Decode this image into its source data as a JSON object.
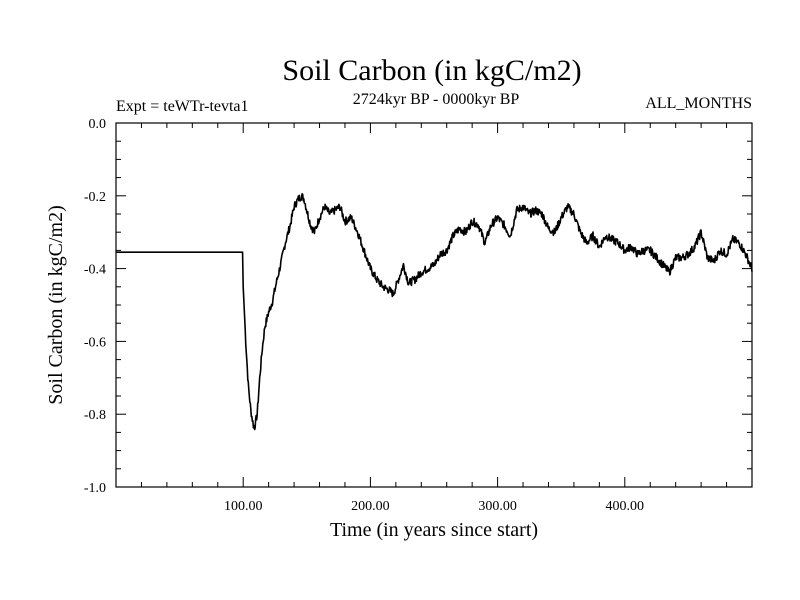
{
  "chart_data": {
    "type": "line",
    "title": "Soil Carbon (in kgC/m2)",
    "left_label": "Expt = teWTr-tevta1",
    "center_label": "2724kyr BP - 0000kyr BP",
    "right_label": "ALL_MONTHS",
    "xlabel": "Time (in years since start)",
    "ylabel": "Soil Carbon (in kgC/m2)",
    "xlim": [
      0,
      500
    ],
    "ylim": [
      -1.0,
      0.0
    ],
    "x_ticks": [
      100,
      200,
      300,
      400
    ],
    "x_tick_labels": [
      "100.00",
      "200.00",
      "300.00",
      "400.00"
    ],
    "y_ticks": [
      0.0,
      -0.2,
      -0.4,
      -0.6,
      -0.8,
      -1.0
    ],
    "y_tick_labels": [
      "0.0",
      "-0.2",
      "-0.4",
      "-0.6",
      "-0.8",
      "-1.0"
    ],
    "line_color": "#000000",
    "series": [
      {
        "name": "Soil Carbon",
        "x": [
          0,
          99.5,
          100,
          102,
          104,
          106,
          108,
          109,
          111,
          113,
          115,
          117,
          120,
          123,
          126,
          130,
          133,
          137,
          140,
          143,
          146,
          148,
          150,
          153,
          156,
          160,
          164,
          168,
          172,
          176,
          180,
          185,
          190,
          195,
          200,
          205,
          210,
          215,
          218,
          222,
          226,
          230,
          235,
          240,
          245,
          250,
          255,
          260,
          265,
          270,
          275,
          280,
          285,
          290,
          295,
          300,
          305,
          310,
          315,
          320,
          325,
          330,
          335,
          340,
          345,
          350,
          355,
          360,
          365,
          370,
          375,
          380,
          385,
          390,
          395,
          400,
          405,
          410,
          415,
          420,
          425,
          430,
          435,
          440,
          445,
          450,
          455,
          460,
          465,
          470,
          475,
          480,
          485,
          490,
          495,
          500
        ],
        "y": [
          -0.355,
          -0.355,
          -0.45,
          -0.6,
          -0.72,
          -0.79,
          -0.83,
          -0.835,
          -0.8,
          -0.7,
          -0.62,
          -0.56,
          -0.52,
          -0.49,
          -0.44,
          -0.38,
          -0.33,
          -0.28,
          -0.23,
          -0.21,
          -0.2,
          -0.21,
          -0.24,
          -0.28,
          -0.3,
          -0.26,
          -0.23,
          -0.25,
          -0.24,
          -0.23,
          -0.27,
          -0.26,
          -0.3,
          -0.35,
          -0.4,
          -0.43,
          -0.45,
          -0.46,
          -0.47,
          -0.43,
          -0.39,
          -0.44,
          -0.43,
          -0.41,
          -0.4,
          -0.39,
          -0.36,
          -0.35,
          -0.31,
          -0.29,
          -0.3,
          -0.27,
          -0.28,
          -0.33,
          -0.28,
          -0.26,
          -0.28,
          -0.31,
          -0.24,
          -0.23,
          -0.25,
          -0.24,
          -0.25,
          -0.29,
          -0.3,
          -0.26,
          -0.23,
          -0.25,
          -0.3,
          -0.33,
          -0.31,
          -0.34,
          -0.31,
          -0.32,
          -0.33,
          -0.35,
          -0.34,
          -0.36,
          -0.35,
          -0.35,
          -0.37,
          -0.39,
          -0.41,
          -0.37,
          -0.37,
          -0.36,
          -0.34,
          -0.3,
          -0.37,
          -0.38,
          -0.35,
          -0.36,
          -0.32,
          -0.33,
          -0.36,
          -0.4
        ]
      }
    ]
  }
}
